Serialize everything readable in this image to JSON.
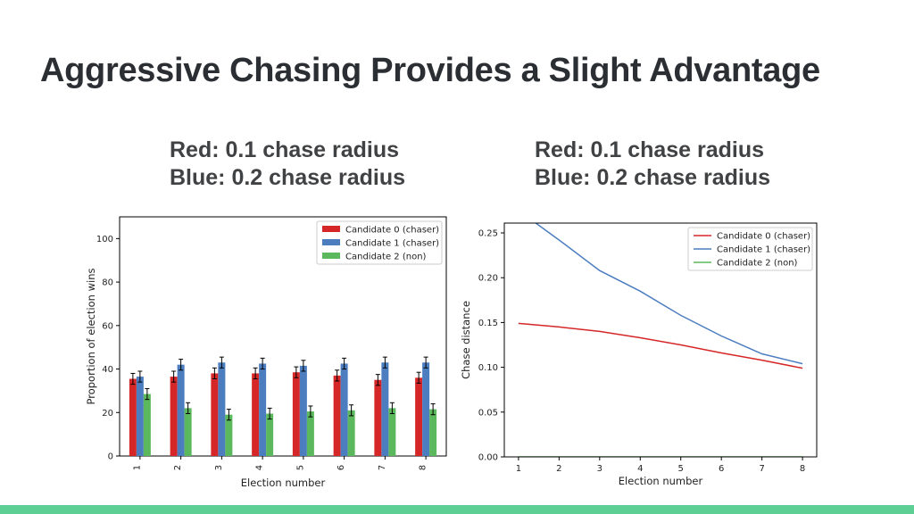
{
  "slide": {
    "title": "Aggressive Chasing Provides a Slight Advantage",
    "accent_color": "#5ecf94"
  },
  "captions": [
    {
      "line1": "Red:  0.1 chase radius",
      "line2": "Blue: 0.2 chase radius"
    },
    {
      "line1": "Red:  0.1 chase radius",
      "line2": "Blue: 0.2 chase radius"
    }
  ],
  "chart_data": [
    {
      "type": "bar",
      "xlabel": "Election number",
      "ylabel": "Proportion of election wins",
      "categories": [
        "1",
        "2",
        "3",
        "4",
        "5",
        "6",
        "7",
        "8"
      ],
      "ylim": [
        0,
        110
      ],
      "yticks": [
        "0",
        "20",
        "40",
        "60",
        "80",
        "100"
      ],
      "legend_position": "top-right",
      "grid": false,
      "series": [
        {
          "name": "Candidate 0 (chaser)",
          "color": "#d62728",
          "values": [
            35.5,
            36.5,
            38,
            38,
            38.5,
            37,
            35,
            36
          ],
          "errors": [
            2.5,
            2.5,
            2.5,
            2.5,
            2.5,
            2.5,
            2.5,
            2.5
          ]
        },
        {
          "name": "Candidate 1 (chaser)",
          "color": "#4c7dbf",
          "values": [
            36.5,
            42,
            43,
            42.5,
            41.5,
            42.5,
            43,
            43
          ],
          "errors": [
            2.5,
            2.5,
            2.5,
            2.5,
            2.5,
            2.5,
            2.5,
            2.5
          ]
        },
        {
          "name": "Candidate 2 (non)",
          "color": "#5cb85c",
          "values": [
            28.5,
            22,
            19,
            19.5,
            20.5,
            21,
            22,
            21.5
          ],
          "errors": [
            2.5,
            2.5,
            2.5,
            2.5,
            2.5,
            2.5,
            2.5,
            2.5
          ]
        }
      ]
    },
    {
      "type": "line",
      "xlabel": "Election number",
      "ylabel": "Chase distance",
      "x": [
        1,
        2,
        3,
        4,
        5,
        6,
        7,
        8
      ],
      "xlim": [
        0.65,
        8.35
      ],
      "ylim": [
        0,
        0.25
      ],
      "yticks": [
        "0.00",
        "0.05",
        "0.10",
        "0.15",
        "0.20",
        "0.25"
      ],
      "legend_position": "top-right",
      "grid": false,
      "series": [
        {
          "name": "Candidate 0 (chaser)",
          "color": "#d62728",
          "values": [
            0.149,
            0.145,
            0.14,
            0.133,
            0.125,
            0.116,
            0.108,
            0.099
          ]
        },
        {
          "name": "Candidate 1 (chaser)",
          "color": "#4c7dbf",
          "values": [
            0.275,
            0.242,
            0.208,
            0.185,
            0.158,
            0.135,
            0.115,
            0.104
          ]
        },
        {
          "name": "Candidate 2 (non)",
          "color": "#5cb85c",
          "values": [
            0,
            0,
            0,
            0,
            0,
            0,
            0,
            0
          ]
        }
      ]
    }
  ]
}
